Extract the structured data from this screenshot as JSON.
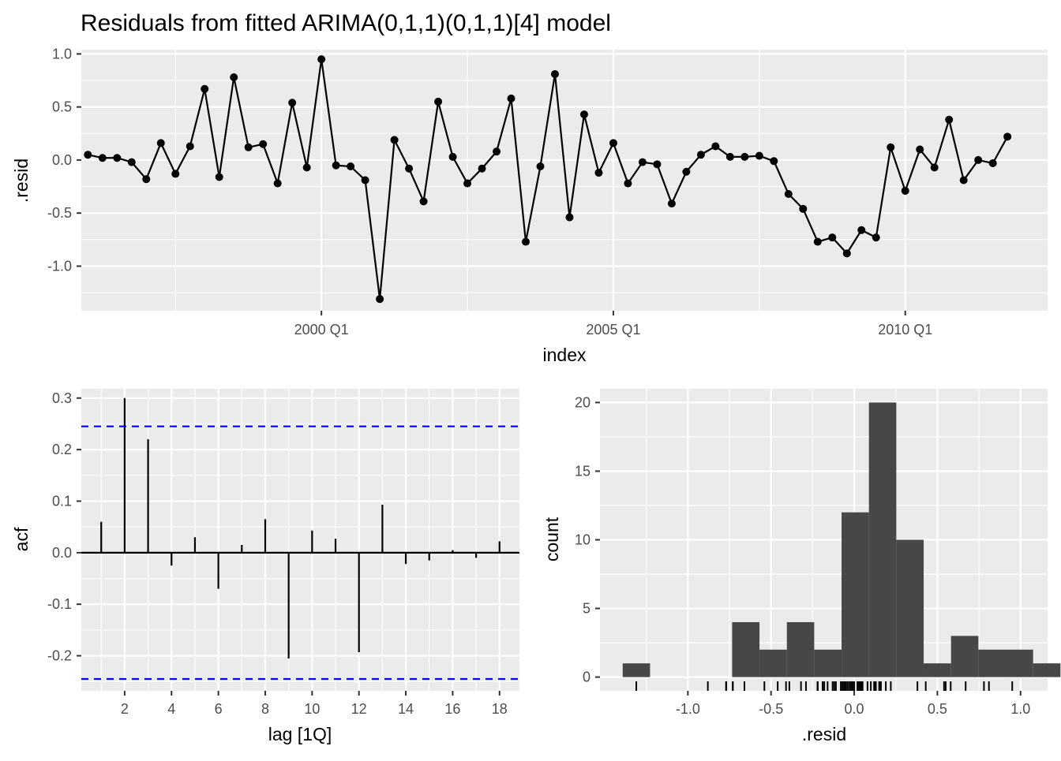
{
  "title": "Residuals from fitted ARIMA(0,1,1)(0,1,1)[4] model",
  "colors": {
    "panel_bg": "#EBEBEB",
    "grid": "#FFFFFF",
    "line": "#000000",
    "ci_line": "#0000FF",
    "bar_fill": "#474747",
    "tick_text": "#4D4D4D"
  },
  "chart_data": [
    {
      "type": "line",
      "title": "Residuals from fitted ARIMA(0,1,1)(0,1,1)[4] model",
      "xlabel": "index",
      "ylabel": ".resid",
      "x_ticks": [
        {
          "value": 2000.0,
          "label": "2000 Q1"
        },
        {
          "value": 2005.0,
          "label": "2005 Q1"
        },
        {
          "value": 2010.0,
          "label": "2010 Q1"
        }
      ],
      "y_ticks": [
        1.0,
        0.5,
        0.0,
        -0.5,
        -1.0
      ],
      "y_tick_labels": [
        "1.0",
        "0.5",
        "0.0",
        "-0.5",
        "-1.0"
      ],
      "xlim": [
        1995.8875,
        2012.4375
      ],
      "ylim": [
        -1.42,
        1.04
      ],
      "grid": true,
      "x_start": 1996.0,
      "x_step": 0.25,
      "values": [
        0.05,
        0.02,
        0.02,
        -0.02,
        -0.18,
        0.16,
        -0.13,
        0.13,
        0.67,
        -0.16,
        0.78,
        0.12,
        0.15,
        -0.22,
        0.54,
        -0.07,
        0.95,
        -0.05,
        -0.06,
        -0.19,
        -1.31,
        0.19,
        -0.08,
        -0.39,
        0.55,
        0.03,
        -0.22,
        -0.08,
        0.08,
        0.58,
        -0.77,
        -0.06,
        0.81,
        -0.54,
        0.43,
        -0.12,
        0.16,
        -0.22,
        -0.02,
        -0.04,
        -0.41,
        -0.11,
        0.05,
        0.13,
        0.03,
        0.03,
        0.04,
        -0.01,
        -0.32,
        -0.46,
        -0.77,
        -0.73,
        -0.88,
        -0.66,
        -0.73,
        0.12,
        -0.29,
        0.1,
        -0.07,
        0.38,
        -0.19,
        0.0,
        -0.03,
        0.22
      ]
    },
    {
      "type": "bar",
      "subtype": "acf",
      "xlabel": "lag [1Q]",
      "ylabel": "acf",
      "lags": [
        1,
        2,
        3,
        4,
        5,
        6,
        7,
        8,
        9,
        10,
        11,
        12,
        13,
        14,
        15,
        16,
        17,
        18
      ],
      "values": [
        0.06,
        0.3,
        0.22,
        -0.025,
        0.03,
        -0.07,
        0.015,
        0.065,
        -0.205,
        0.043,
        0.027,
        -0.193,
        0.093,
        -0.022,
        -0.015,
        0.005,
        -0.01,
        0.022
      ],
      "ci": 0.245,
      "x_ticks": [
        2,
        4,
        6,
        8,
        10,
        12,
        14,
        16,
        18
      ],
      "y_ticks": [
        0.3,
        0.2,
        0.1,
        0.0,
        -0.1,
        -0.2
      ],
      "y_tick_labels": [
        "0.3",
        "0.2",
        "0.1",
        "0.0",
        "-0.1",
        "-0.2"
      ],
      "xlim": [
        0.15,
        18.85
      ],
      "ylim": [
        -0.268,
        0.318
      ],
      "grid": true
    },
    {
      "type": "bar",
      "subtype": "histogram",
      "xlabel": ".resid",
      "ylabel": "count",
      "bin_width": 0.1645,
      "bin_start": -1.392,
      "counts": [
        1,
        0,
        0,
        0,
        4,
        2,
        4,
        2,
        12,
        20,
        10,
        1,
        3,
        2,
        2,
        1
      ],
      "x_ticks": [
        -1.0,
        -0.5,
        0.0,
        0.5,
        1.0
      ],
      "x_tick_labels": [
        "-1.0",
        "-0.5",
        "0.0",
        "0.5",
        "1.0"
      ],
      "y_ticks": [
        20,
        15,
        10,
        5,
        0
      ],
      "xlim": [
        -1.5285,
        1.1625
      ],
      "ylim": [
        -1.0,
        21.0
      ],
      "grid": true,
      "rug": [
        -1.31,
        -0.88,
        -0.77,
        -0.77,
        -0.73,
        -0.73,
        -0.66,
        -0.54,
        -0.46,
        -0.41,
        -0.39,
        -0.32,
        -0.29,
        -0.22,
        -0.22,
        -0.22,
        -0.19,
        -0.19,
        -0.18,
        -0.16,
        -0.13,
        -0.12,
        -0.11,
        -0.08,
        -0.08,
        -0.07,
        -0.07,
        -0.06,
        -0.06,
        -0.05,
        -0.04,
        -0.03,
        -0.02,
        -0.02,
        -0.01,
        0.0,
        0.02,
        0.02,
        0.03,
        0.03,
        0.03,
        0.04,
        0.05,
        0.05,
        0.08,
        0.1,
        0.12,
        0.12,
        0.13,
        0.13,
        0.15,
        0.16,
        0.16,
        0.19,
        0.22,
        0.38,
        0.43,
        0.54,
        0.55,
        0.58,
        0.67,
        0.78,
        0.81,
        0.95
      ]
    }
  ]
}
